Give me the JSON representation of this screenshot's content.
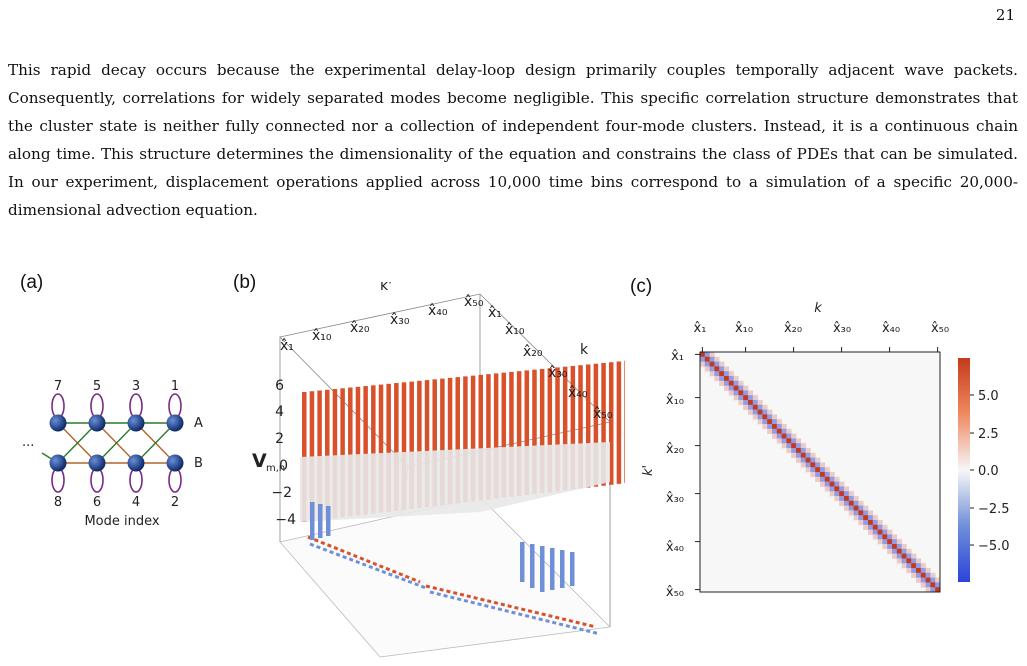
{
  "page_number": "21",
  "paragraph": "This rapid decay occurs because the experimental delay-loop design primarily couples temporally adjacent wave packets. Consequently, correlations for widely separated modes become negligible. This specific correlation structure demonstrates that the cluster state is neither fully connected nor a collection of independent four-mode clusters. Instead, it is a continuous chain along time.  This structure determines the dimensionality of the equation and constrains the class of PDEs that can be simulated. In our experiment, displacement operations applied across 10,000 time bins correspond to a simulation of a specific 20,000-dimensional advection equation.",
  "panel_a": {
    "label": "(a)",
    "top_modes": [
      "7",
      "5",
      "3",
      "1"
    ],
    "bottom_modes": [
      "8",
      "6",
      "4",
      "2"
    ],
    "rail_a": "A",
    "rail_b": "B",
    "ellipsis": "...",
    "xlabel": "Mode index"
  },
  "panel_b": {
    "label": "(b)",
    "axis_k_prime": "k'",
    "axis_k": "k",
    "zlabel": "V",
    "zlabel_sub": "m,n",
    "z_ticks": [
      "6",
      "4",
      "2",
      "0",
      "−2",
      "−4"
    ],
    "kprime_ticks": [
      "x̂₁",
      "x̂₁₀",
      "x̂₂₀",
      "x̂₃₀",
      "x̂₄₀",
      "x̂₅₀"
    ],
    "k_ticks": [
      "x̂₁",
      "x̂₁₀",
      "x̂₂₀",
      "x̂₃₀",
      "x̂₄₀",
      "x̂₅₀"
    ],
    "colors": {
      "positive": "#d9512b",
      "negative": "#6f8fd8",
      "neutral": "#e8e8e8"
    }
  },
  "panel_c": {
    "label": "(c)",
    "xlabel": "k",
    "ylabel": "k'",
    "x_ticks": [
      "x̂₁",
      "x̂₁₀",
      "x̂₂₀",
      "x̂₃₀",
      "x̂₄₀",
      "x̂₅₀"
    ],
    "y_ticks": [
      "x̂₁",
      "x̂₁₀",
      "x̂₂₀",
      "x̂₃₀",
      "x̂₄₀",
      "x̂₅₀"
    ],
    "colorbar_ticks": [
      "5.0",
      "2.5",
      "0.0",
      "−2.5",
      "−5.0"
    ],
    "colors": {
      "max": "#b40426",
      "zero": "#f7f7f7",
      "min": "#3b4cc0"
    }
  },
  "chart_data": [
    {
      "type": "heatmap",
      "matrix_size": 50,
      "diagonal_value": 6.5,
      "first_offdiagonal_value": -3.3,
      "second_offdiagonal_value": 1.5,
      "x_tick_labels": [
        "x̂₁",
        "x̂₁₀",
        "x̂₂₀",
        "x̂₃₀",
        "x̂₄₀",
        "x̂₅₀"
      ],
      "y_tick_labels": [
        "x̂₁",
        "x̂₁₀",
        "x̂₂₀",
        "x̂₃₀",
        "x̂₄₀",
        "x̂₅₀"
      ],
      "colorbar_range": [
        -6.5,
        6.5
      ]
    }
  ]
}
